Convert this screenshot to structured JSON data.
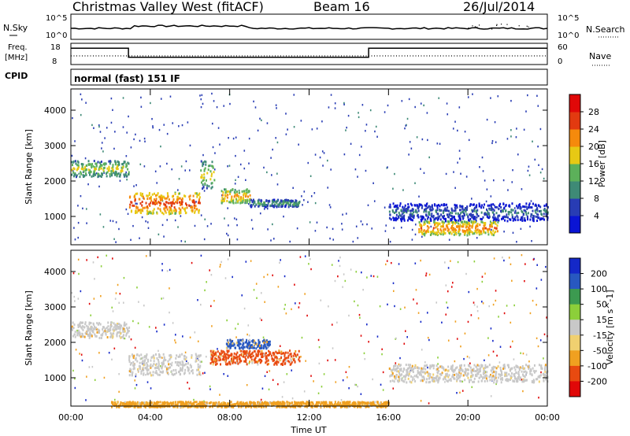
{
  "header": {
    "title": "Christmas Valley West (fitACF)",
    "beam": "Beam 16",
    "date": "26/Jul/2014"
  },
  "top_panels": {
    "nsky_label": "N.Sky",
    "nsky_ticks": [
      "10^5",
      "10^0"
    ],
    "nsearch_label": "N.Search",
    "nsearch_ticks": [
      "10^5",
      "10^0"
    ],
    "freq_label": "Freq.",
    "freq_unit": "[MHz]",
    "freq_ticks": [
      "18",
      "8"
    ],
    "nave_label": "Nave",
    "nave_ticks": [
      "60",
      "0"
    ],
    "cpid_label": "CPID",
    "cpid_value": "normal (fast) 151 IF"
  },
  "chart_data": [
    {
      "type": "heatmap",
      "panel": "power",
      "xlabel": "Time UT",
      "ylabel": "Slant Range [km]",
      "x_ticks": [
        "00:00",
        "04:00",
        "08:00",
        "12:00",
        "16:00",
        "20:00",
        "00:00"
      ],
      "x_tick_values": [
        0,
        4,
        8,
        12,
        16,
        20,
        24
      ],
      "xlim": [
        0,
        24
      ],
      "ylim": [
        200,
        4600
      ],
      "y_ticks": [
        1000,
        2000,
        3000,
        4000
      ],
      "colorbar": {
        "label": "Power [dB]",
        "ticks": [
          4,
          8,
          12,
          16,
          20,
          24,
          28
        ],
        "range": [
          0,
          32
        ],
        "colors": [
          "#0a14d4",
          "#283cb4",
          "#3e8a76",
          "#5cb05a",
          "#e7c914",
          "#f58a0c",
          "#e23a10",
          "#e00808"
        ]
      },
      "bands": [
        {
          "t0": 0.0,
          "t1": 2.9,
          "r0": 2150,
          "r1": 2600,
          "level": 18
        },
        {
          "t0": 2.9,
          "t1": 6.5,
          "r0": 1100,
          "r1": 1700,
          "level": 26
        },
        {
          "t0": 6.5,
          "t1": 7.2,
          "r0": 1800,
          "r1": 2600,
          "level": 18
        },
        {
          "t0": 7.5,
          "t1": 9.0,
          "r0": 1400,
          "r1": 1800,
          "level": 22
        },
        {
          "t0": 9.0,
          "t1": 11.5,
          "r0": 1300,
          "r1": 1500,
          "level": 14
        },
        {
          "t0": 16.0,
          "t1": 24.0,
          "r0": 900,
          "r1": 1400,
          "level": 10
        },
        {
          "t0": 17.5,
          "t1": 21.5,
          "r0": 500,
          "r1": 900,
          "level": 24
        }
      ]
    },
    {
      "type": "heatmap",
      "panel": "velocity",
      "xlabel": "Time UT",
      "ylabel": "Slant Range [km]",
      "x_ticks": [
        "00:00",
        "04:00",
        "08:00",
        "12:00",
        "16:00",
        "20:00",
        "00:00"
      ],
      "x_tick_values": [
        0,
        4,
        8,
        12,
        16,
        20,
        24
      ],
      "xlim": [
        0,
        24
      ],
      "ylim": [
        200,
        4600
      ],
      "y_ticks": [
        1000,
        2000,
        3000,
        4000
      ],
      "colorbar": {
        "label": "Velocity [m s^-1]",
        "ticks": [
          "200",
          "100",
          "50",
          "15",
          "-15",
          "-50",
          "-100",
          "-200"
        ],
        "colors": [
          "#1428c8",
          "#2858c0",
          "#3c9a50",
          "#8ccf3a",
          "#c8c8c8",
          "#f0d070",
          "#f0a020",
          "#e84a10",
          "#e00808"
        ]
      },
      "bands": [
        {
          "t0": 0.0,
          "t1": 2.9,
          "r0": 2150,
          "r1": 2600,
          "level": "ground"
        },
        {
          "t0": 2.9,
          "t1": 6.5,
          "r0": 1100,
          "r1": 1700,
          "level": "ground"
        },
        {
          "t0": 7.0,
          "t1": 11.5,
          "r0": 1400,
          "r1": 1800,
          "level": "-100"
        },
        {
          "t0": 7.8,
          "t1": 10.0,
          "r0": 1850,
          "r1": 2100,
          "level": "100"
        },
        {
          "t0": 16.0,
          "t1": 24.0,
          "r0": 900,
          "r1": 1400,
          "level": "ground"
        },
        {
          "t0": 2.0,
          "t1": 16.0,
          "r0": 200,
          "r1": 350,
          "level": "-50"
        }
      ]
    }
  ]
}
